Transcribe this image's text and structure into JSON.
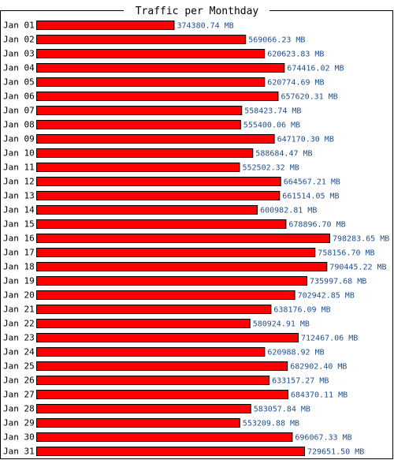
{
  "chart_data": {
    "type": "bar",
    "orientation": "horizontal",
    "title": "Traffic per Monthday",
    "unit": "MB",
    "categories": [
      "Jan 01",
      "Jan 02",
      "Jan 03",
      "Jan 04",
      "Jan 05",
      "Jan 06",
      "Jan 07",
      "Jan 08",
      "Jan 09",
      "Jan 10",
      "Jan 11",
      "Jan 12",
      "Jan 13",
      "Jan 14",
      "Jan 15",
      "Jan 16",
      "Jan 17",
      "Jan 18",
      "Jan 19",
      "Jan 20",
      "Jan 21",
      "Jan 22",
      "Jan 23",
      "Jan 24",
      "Jan 25",
      "Jan 26",
      "Jan 27",
      "Jan 28",
      "Jan 29",
      "Jan 30",
      "Jan 31"
    ],
    "values": [
      374380.74,
      569066.23,
      620623.83,
      674416.02,
      620774.69,
      657620.31,
      558423.74,
      555400.06,
      647170.3,
      588684.47,
      552502.32,
      664567.21,
      661514.05,
      600982.81,
      678896.7,
      798283.65,
      758156.7,
      790445.22,
      735997.68,
      702942.85,
      638176.09,
      580924.91,
      712467.06,
      620988.92,
      682902.4,
      633157.27,
      684370.11,
      583057.84,
      553209.88,
      696067.33,
      729651.5
    ],
    "value_labels": [
      "374380.74 MB",
      "569066.23 MB",
      "620623.83 MB",
      "674416.02 MB",
      "620774.69 MB",
      "657620.31 MB",
      "558423.74 MB",
      "555400.06 MB",
      "647170.30 MB",
      "588684.47 MB",
      "552502.32 MB",
      "664567.21 MB",
      "661514.05 MB",
      "600982.81 MB",
      "678896.70 MB",
      "798283.65 MB",
      "758156.70 MB",
      "790445.22 MB",
      "735997.68 MB",
      "702942.85 MB",
      "638176.09 MB",
      "580924.91 MB",
      "712467.06 MB",
      "620988.92 MB",
      "682902.40 MB",
      "633157.27 MB",
      "684370.11 MB",
      "583057.84 MB",
      "553209.88 MB",
      "696067.33 MB",
      "729651.50 MB"
    ],
    "xlim": [
      0,
      798283.65
    ],
    "grid": false,
    "legend": "none",
    "colors": {
      "bar": "#ff0000",
      "bar_outline": "#000000",
      "value_label": "#1f4f8f",
      "category_label": "#000000",
      "frame": "#000000",
      "background": "#ffffff"
    }
  }
}
